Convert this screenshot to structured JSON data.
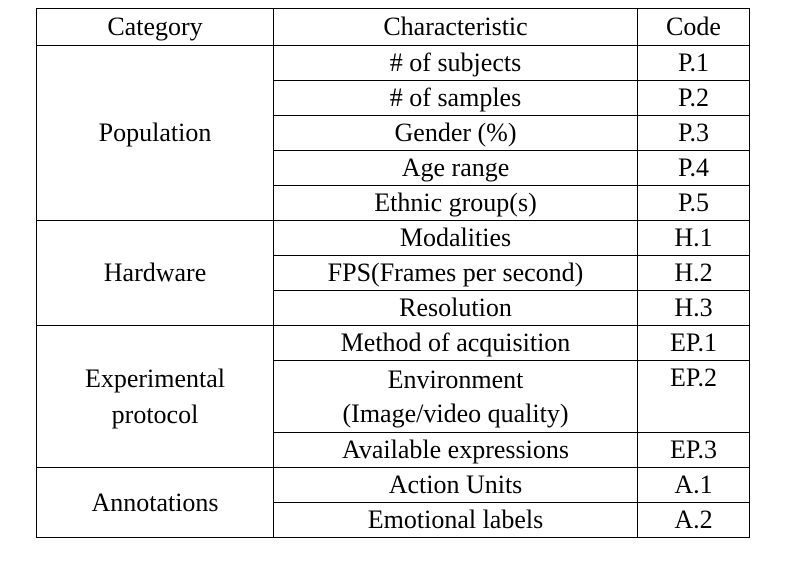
{
  "table": {
    "headers": {
      "category": "Category",
      "characteristic": "Characteristic",
      "code": "Code"
    },
    "groups": [
      {
        "category": "Population",
        "rows": [
          {
            "characteristic": "# of subjects",
            "code": "P.1"
          },
          {
            "characteristic": "# of samples",
            "code": "P.2"
          },
          {
            "characteristic": "Gender (%)",
            "code": "P.3"
          },
          {
            "characteristic": "Age range",
            "code": "P.4"
          },
          {
            "characteristic": "Ethnic group(s)",
            "code": "P.5"
          }
        ]
      },
      {
        "category": "Hardware",
        "rows": [
          {
            "characteristic": "Modalities",
            "code": "H.1"
          },
          {
            "characteristic": "FPS(Frames per second)",
            "code": "H.2"
          },
          {
            "characteristic": "Resolution",
            "code": "H.3"
          }
        ]
      },
      {
        "category_line1": "Experimental",
        "category_line2": "protocol",
        "rows": [
          {
            "characteristic": "Method of acquisition",
            "code": "EP.1"
          },
          {
            "characteristic_line1": "Environment",
            "characteristic_line2": "(Image/video quality)",
            "code": "EP.2"
          },
          {
            "characteristic": "Available expressions",
            "code": "EP.3"
          }
        ]
      },
      {
        "category": "Annotations",
        "rows": [
          {
            "characteristic": "Action Units",
            "code": "A.1"
          },
          {
            "characteristic": "Emotional labels",
            "code": "A.2"
          }
        ]
      }
    ]
  }
}
